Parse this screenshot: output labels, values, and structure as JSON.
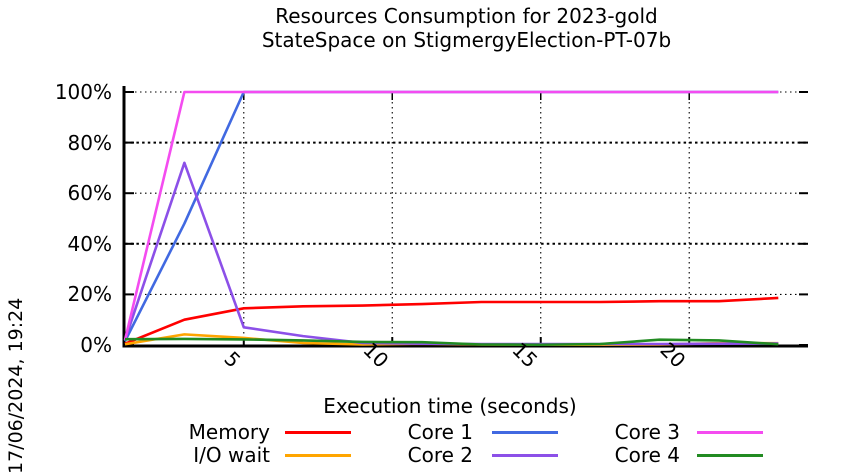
{
  "timestamp": "17/06/2024, 19:24",
  "chart_data": {
    "type": "line",
    "title": "Resources Consumption for 2023-gold",
    "subtitle": "StateSpace on StigmergyElection-PT-07b",
    "xlabel": "Execution time (seconds)",
    "ylabel": "",
    "xlim": [
      1,
      24
    ],
    "ylim": [
      0,
      100
    ],
    "xticks": [
      5,
      10,
      15,
      20
    ],
    "yticks": [
      0,
      20,
      40,
      60,
      80,
      100
    ],
    "ytick_suffix": "%",
    "grid": true,
    "legend_position": "bottom",
    "x": [
      1,
      3,
      5,
      7,
      9,
      11,
      13,
      15,
      17,
      19,
      21,
      23
    ],
    "series": [
      {
        "name": "Memory",
        "color": "#ff0000",
        "values": [
          0.5,
          10,
          14.5,
          15.3,
          15.6,
          16.2,
          17.0,
          17.0,
          17.0,
          17.3,
          17.3,
          18.6
        ]
      },
      {
        "name": "I/O wait",
        "color": "#ffa500",
        "values": [
          0.3,
          4.2,
          2.8,
          0.8,
          0.2,
          0.5,
          0.2,
          0.1,
          0.1,
          0.2,
          0.7,
          0.7
        ]
      },
      {
        "name": "Core 1",
        "color": "#4169e1",
        "values": [
          1.5,
          48,
          100,
          100,
          100,
          100,
          100,
          100,
          100,
          100,
          100,
          100
        ]
      },
      {
        "name": "Core 2",
        "color": "#8c50e8",
        "values": [
          2,
          72,
          7,
          3.5,
          0.8,
          0.5,
          0.4,
          0.4,
          0.4,
          0.4,
          0.5,
          0.6
        ]
      },
      {
        "name": "Core 3",
        "color": "#f44cf0",
        "values": [
          2,
          100,
          100,
          100,
          100,
          100,
          100,
          100,
          100,
          100,
          100,
          100
        ]
      },
      {
        "name": "Core 4",
        "color": "#228b22",
        "values": [
          2.3,
          2.4,
          2.2,
          1.8,
          1.2,
          1.1,
          0.2,
          0.1,
          0.4,
          2.1,
          1.8,
          0.3
        ]
      }
    ]
  }
}
